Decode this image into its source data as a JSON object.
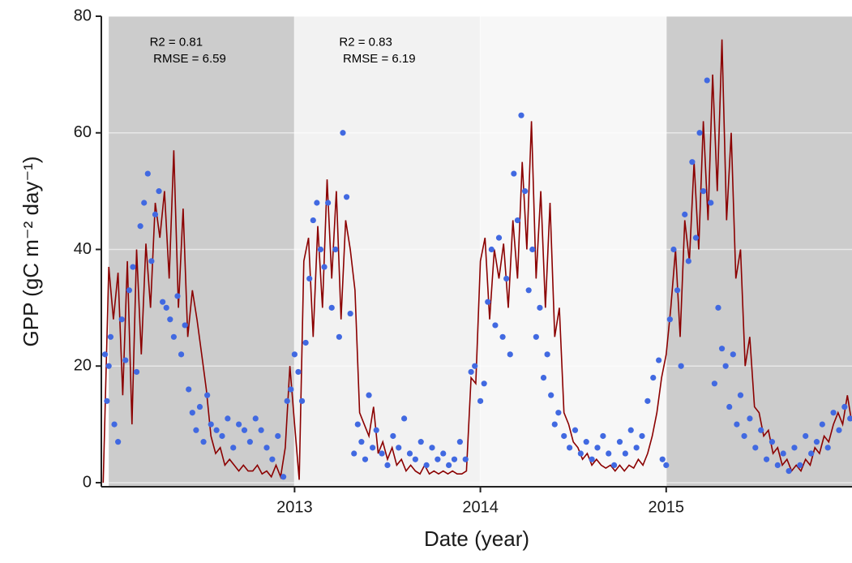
{
  "chart_data": {
    "type": "line",
    "xlabel": "Date (year)",
    "ylabel": "GPP (gC m⁻² day⁻¹)",
    "xlim": [
      2011.96,
      2016.0
    ],
    "ylim": [
      -0.7,
      80
    ],
    "xticks": [
      2013,
      2014,
      2015
    ],
    "yticks": [
      0,
      20,
      40,
      60,
      80
    ],
    "grid": true,
    "bands": [
      {
        "start": 2012.0,
        "end": 2013.0,
        "color": "#cccccc"
      },
      {
        "start": 2013.0,
        "end": 2014.0,
        "color": "#f2f2f2"
      },
      {
        "start": 2014.0,
        "end": 2015.0,
        "color": "#f7f7f7"
      },
      {
        "start": 2015.0,
        "end": 2016.0,
        "color": "#cccccc"
      }
    ],
    "annotations": [
      {
        "text": "R2 = 0.81",
        "x": 2012.22,
        "y": 75.5
      },
      {
        "text": "RMSE = 6.59",
        "x": 2012.24,
        "y": 72.6
      },
      {
        "text": "R2 = 0.83",
        "x": 2013.24,
        "y": 75.5
      },
      {
        "text": "RMSE = 6.19",
        "x": 2013.26,
        "y": 72.6
      }
    ],
    "series": [
      {
        "type": "line",
        "color": "#8b0000",
        "x": [
          2011.97,
          2012.0,
          2012.025,
          2012.05,
          2012.075,
          2012.1,
          2012.125,
          2012.15,
          2012.175,
          2012.2,
          2012.225,
          2012.25,
          2012.275,
          2012.3,
          2012.325,
          2012.35,
          2012.375,
          2012.4,
          2012.425,
          2012.45,
          2012.475,
          2012.5,
          2012.525,
          2012.55,
          2012.575,
          2012.6,
          2012.625,
          2012.65,
          2012.675,
          2012.7,
          2012.725,
          2012.75,
          2012.775,
          2012.8,
          2012.825,
          2012.85,
          2012.875,
          2012.9,
          2012.925,
          2012.95,
          2012.975,
          2013.0,
          2013.025,
          2013.05,
          2013.075,
          2013.1,
          2013.125,
          2013.15,
          2013.175,
          2013.2,
          2013.225,
          2013.25,
          2013.275,
          2013.3,
          2013.325,
          2013.35,
          2013.375,
          2013.4,
          2013.425,
          2013.45,
          2013.475,
          2013.5,
          2013.525,
          2013.55,
          2013.575,
          2013.6,
          2013.625,
          2013.65,
          2013.675,
          2013.7,
          2013.725,
          2013.75,
          2013.775,
          2013.8,
          2013.825,
          2013.85,
          2013.875,
          2013.9,
          2013.925,
          2013.95,
          2013.975,
          2014.0,
          2014.025,
          2014.05,
          2014.075,
          2014.1,
          2014.125,
          2014.15,
          2014.175,
          2014.2,
          2014.225,
          2014.25,
          2014.275,
          2014.3,
          2014.325,
          2014.35,
          2014.375,
          2014.4,
          2014.425,
          2014.45,
          2014.475,
          2014.5,
          2014.525,
          2014.55,
          2014.575,
          2014.6,
          2014.625,
          2014.65,
          2014.675,
          2014.7,
          2014.725,
          2014.75,
          2014.775,
          2014.8,
          2014.825,
          2014.85,
          2014.875,
          2014.9,
          2014.925,
          2014.95,
          2014.975,
          2015.0,
          2015.025,
          2015.05,
          2015.075,
          2015.1,
          2015.125,
          2015.15,
          2015.175,
          2015.2,
          2015.225,
          2015.25,
          2015.275,
          2015.3,
          2015.325,
          2015.35,
          2015.375,
          2015.4,
          2015.425,
          2015.45,
          2015.475,
          2015.5,
          2015.525,
          2015.55,
          2015.575,
          2015.6,
          2015.625,
          2015.65,
          2015.675,
          2015.7,
          2015.725,
          2015.75,
          2015.775,
          2015.8,
          2015.825,
          2015.85,
          2015.875,
          2015.9,
          2015.925,
          2015.95,
          2015.975,
          2015.995
        ],
        "values": [
          0,
          37,
          28,
          36,
          15,
          38,
          10,
          40,
          22,
          41,
          30,
          48,
          42,
          50,
          35,
          57,
          30,
          47,
          25,
          33,
          28,
          22,
          16,
          8,
          5,
          6,
          3,
          4,
          3,
          2,
          3,
          2,
          2,
          3,
          1.5,
          2,
          1,
          3,
          1,
          6,
          20,
          10,
          0.5,
          38,
          42,
          25,
          44,
          30,
          52,
          35,
          50,
          28,
          45,
          40,
          33,
          12,
          10,
          8,
          13,
          5,
          7,
          4,
          6,
          3,
          4,
          2,
          3,
          2,
          1.5,
          3,
          1.5,
          2,
          1.5,
          2,
          1.5,
          2,
          1.5,
          1.5,
          2,
          18,
          17,
          38,
          42,
          28,
          40,
          35,
          41,
          30,
          45,
          35,
          55,
          40,
          62,
          35,
          50,
          30,
          48,
          25,
          30,
          12,
          10,
          7,
          6,
          4,
          5,
          3,
          4,
          3,
          2.5,
          3,
          2,
          3,
          2,
          3,
          2.5,
          4,
          3,
          5,
          8,
          12,
          18,
          22,
          30,
          40,
          25,
          45,
          38,
          55,
          40,
          62,
          45,
          70,
          50,
          76,
          45,
          60,
          35,
          40,
          20,
          25,
          13,
          12,
          8,
          9,
          5,
          6,
          3,
          4,
          2,
          3,
          2,
          4,
          3,
          6,
          5,
          8,
          7,
          10,
          12,
          10,
          15,
          11
        ]
      },
      {
        "type": "scatter",
        "color": "#4169e1",
        "x": [
          2011.98,
          2011.99,
          2012.0,
          2012.01,
          2012.03,
          2012.05,
          2012.07,
          2012.09,
          2012.11,
          2012.13,
          2012.15,
          2012.17,
          2012.19,
          2012.21,
          2012.23,
          2012.25,
          2012.27,
          2012.29,
          2012.31,
          2012.33,
          2012.35,
          2012.37,
          2012.39,
          2012.41,
          2012.43,
          2012.45,
          2012.47,
          2012.49,
          2012.51,
          2012.53,
          2012.55,
          2012.58,
          2012.61,
          2012.64,
          2012.67,
          2012.7,
          2012.73,
          2012.76,
          2012.79,
          2012.82,
          2012.85,
          2012.88,
          2012.91,
          2012.94,
          2012.96,
          2012.98,
          2013.0,
          2013.02,
          2013.04,
          2013.06,
          2013.08,
          2013.1,
          2013.12,
          2013.14,
          2013.16,
          2013.18,
          2013.2,
          2013.22,
          2013.24,
          2013.26,
          2013.28,
          2013.3,
          2013.32,
          2013.34,
          2013.36,
          2013.38,
          2013.4,
          2013.42,
          2013.44,
          2013.47,
          2013.5,
          2013.53,
          2013.56,
          2013.59,
          2013.62,
          2013.65,
          2013.68,
          2013.71,
          2013.74,
          2013.77,
          2013.8,
          2013.83,
          2013.86,
          2013.89,
          2013.92,
          2013.95,
          2013.97,
          2014.0,
          2014.02,
          2014.04,
          2014.06,
          2014.08,
          2014.1,
          2014.12,
          2014.14,
          2014.16,
          2014.18,
          2014.2,
          2014.22,
          2014.24,
          2014.26,
          2014.28,
          2014.3,
          2014.32,
          2014.34,
          2014.36,
          2014.38,
          2014.4,
          2014.42,
          2014.45,
          2014.48,
          2014.51,
          2014.54,
          2014.57,
          2014.6,
          2014.63,
          2014.66,
          2014.69,
          2014.72,
          2014.75,
          2014.78,
          2014.81,
          2014.84,
          2014.87,
          2014.9,
          2014.93,
          2014.96,
          2014.98,
          2015.0,
          2015.02,
          2015.04,
          2015.06,
          2015.08,
          2015.1,
          2015.12,
          2015.14,
          2015.16,
          2015.18,
          2015.2,
          2015.22,
          2015.24,
          2015.26,
          2015.28,
          2015.3,
          2015.32,
          2015.34,
          2015.36,
          2015.38,
          2015.4,
          2015.42,
          2015.45,
          2015.48,
          2015.51,
          2015.54,
          2015.57,
          2015.6,
          2015.63,
          2015.66,
          2015.69,
          2015.72,
          2015.75,
          2015.78,
          2015.81,
          2015.84,
          2015.87,
          2015.9,
          2015.93,
          2015.96,
          2015.99
        ],
        "values": [
          22,
          14,
          20,
          25,
          10,
          7,
          28,
          21,
          33,
          37,
          19,
          44,
          48,
          53,
          38,
          46,
          50,
          31,
          30,
          28,
          25,
          32,
          22,
          27,
          16,
          12,
          9,
          13,
          7,
          15,
          10,
          9,
          8,
          11,
          6,
          10,
          9,
          7,
          11,
          9,
          6,
          4,
          8,
          1,
          14,
          16,
          22,
          19,
          14,
          24,
          35,
          45,
          48,
          40,
          37,
          48,
          30,
          40,
          25,
          60,
          49,
          29,
          5,
          10,
          7,
          4,
          15,
          6,
          9,
          5,
          3,
          8,
          6,
          11,
          5,
          4,
          7,
          3,
          6,
          4,
          5,
          3,
          4,
          7,
          4,
          19,
          20,
          14,
          17,
          31,
          40,
          27,
          42,
          25,
          35,
          22,
          53,
          45,
          63,
          50,
          33,
          40,
          25,
          30,
          18,
          22,
          15,
          10,
          12,
          8,
          6,
          9,
          5,
          7,
          4,
          6,
          8,
          5,
          3,
          7,
          5,
          9,
          6,
          8,
          14,
          18,
          21,
          4,
          3,
          28,
          40,
          33,
          20,
          46,
          38,
          55,
          42,
          60,
          50,
          69,
          48,
          17,
          30,
          23,
          20,
          13,
          22,
          10,
          15,
          8,
          11,
          6,
          9,
          4,
          7,
          3,
          5,
          2,
          6,
          3,
          8,
          5,
          7,
          10,
          6,
          12,
          9,
          13,
          11
        ]
      }
    ]
  }
}
